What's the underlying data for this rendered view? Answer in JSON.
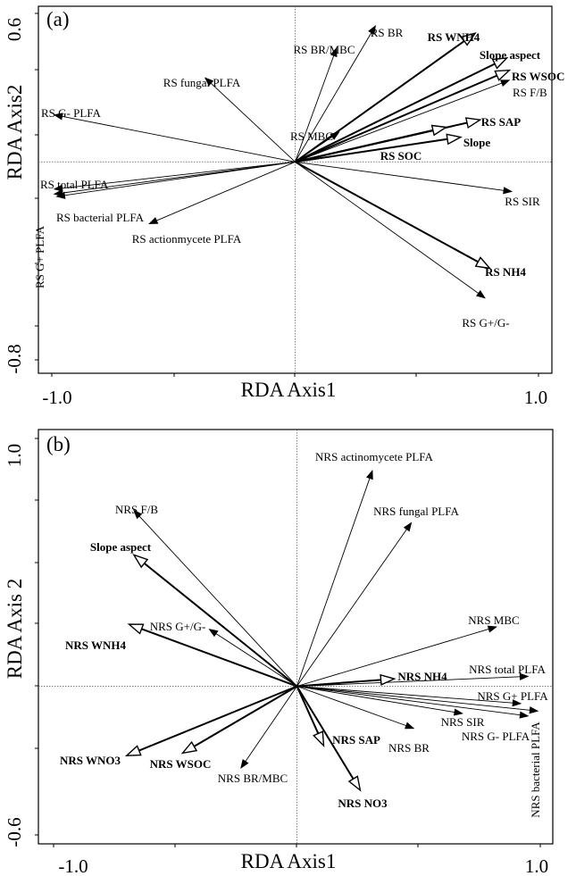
{
  "chart_data": [
    {
      "type": "scatter",
      "panel_label": "(a)",
      "xlabel": "RDA Axis1",
      "ylabel": "RDA Axis2",
      "xlim": [
        -1.0,
        1.0
      ],
      "ylim": [
        -0.8,
        0.6
      ],
      "x_tick_labels": [
        "-1.0",
        "1.0"
      ],
      "y_tick_labels": [
        "0.6",
        "-0.8"
      ],
      "vectors": [
        {
          "label": "RS BR",
          "x": 0.33,
          "y": 0.55,
          "style": "thin"
        },
        {
          "label": "RS BR/MBC",
          "x": 0.17,
          "y": 0.46,
          "style": "thin"
        },
        {
          "label": "RS fungal PLFA",
          "x": -0.37,
          "y": 0.34,
          "style": "thin"
        },
        {
          "label": "RS G- PLFA",
          "x": -0.99,
          "y": 0.19,
          "style": "thin"
        },
        {
          "label": "RS MBC",
          "x": 0.18,
          "y": 0.12,
          "style": "thin"
        },
        {
          "label": "RS total PLFA",
          "x": -0.99,
          "y": -0.11,
          "style": "thin"
        },
        {
          "label": "RS G+ PLFA",
          "x": -0.99,
          "y": -0.13,
          "style": "thin"
        },
        {
          "label": "RS bacterial PLFA",
          "x": -0.98,
          "y": -0.14,
          "style": "thin"
        },
        {
          "label": "RS actionmycete PLFA",
          "x": -0.6,
          "y": -0.25,
          "style": "thin"
        },
        {
          "label": "RS F/B",
          "x": 0.88,
          "y": 0.33,
          "style": "thin"
        },
        {
          "label": "RS SIR",
          "x": 0.89,
          "y": -0.12,
          "style": "thin"
        },
        {
          "label": "RS G+/G-",
          "x": 0.78,
          "y": -0.55,
          "style": "thin"
        },
        {
          "label": "RS WNH4",
          "x": 0.74,
          "y": 0.52,
          "style": "thick"
        },
        {
          "label": "Slope aspect",
          "x": 0.87,
          "y": 0.42,
          "style": "thick"
        },
        {
          "label": "RS WSOC",
          "x": 0.88,
          "y": 0.37,
          "style": "thick"
        },
        {
          "label": "RS SAP",
          "x": 0.76,
          "y": 0.17,
          "style": "thick"
        },
        {
          "label": "RS SOC",
          "x": 0.62,
          "y": 0.14,
          "style": "thick"
        },
        {
          "label": "Slope",
          "x": 0.68,
          "y": 0.1,
          "style": "thick"
        },
        {
          "label": "RS NH4",
          "x": 0.8,
          "y": -0.43,
          "style": "thick"
        }
      ]
    },
    {
      "type": "scatter",
      "panel_label": "(b)",
      "xlabel": "RDA Axis1",
      "ylabel": "RDA Axis 2",
      "xlim": [
        -1.0,
        1.0
      ],
      "ylim": [
        -0.6,
        1.0
      ],
      "x_tick_labels": [
        "-1.0",
        "1.0"
      ],
      "y_tick_labels": [
        "1.0",
        "-0.6"
      ],
      "vectors": [
        {
          "label": "NRS actinomycete PLFA",
          "x": 0.31,
          "y": 0.87,
          "style": "thin"
        },
        {
          "label": "NRS fungal PLFA",
          "x": 0.47,
          "y": 0.66,
          "style": "thin"
        },
        {
          "label": "NRS F/B",
          "x": -0.67,
          "y": 0.71,
          "style": "thin"
        },
        {
          "label": "NRS G+/G-",
          "x": -0.36,
          "y": 0.23,
          "style": "thin"
        },
        {
          "label": "NRS MBC",
          "x": 0.82,
          "y": 0.24,
          "style": "thin"
        },
        {
          "label": "NRS total PLFA",
          "x": 0.95,
          "y": 0.04,
          "style": "thin"
        },
        {
          "label": "NRS G+ PLFA",
          "x": 0.92,
          "y": -0.07,
          "style": "thin"
        },
        {
          "label": "NRS bacterial PLFA",
          "x": 0.99,
          "y": -0.1,
          "style": "thin"
        },
        {
          "label": "NRS G- PLFA",
          "x": 0.95,
          "y": -0.12,
          "style": "thin"
        },
        {
          "label": "NRS SIR",
          "x": 0.68,
          "y": -0.11,
          "style": "thin"
        },
        {
          "label": "NRS BR",
          "x": 0.48,
          "y": -0.17,
          "style": "thin"
        },
        {
          "label": "NRS BR/MBC",
          "x": -0.23,
          "y": -0.33,
          "style": "thin"
        },
        {
          "label": "Slope aspect",
          "x": -0.67,
          "y": 0.53,
          "style": "thick"
        },
        {
          "label": "NRS WNH4",
          "x": -0.69,
          "y": 0.25,
          "style": "thick"
        },
        {
          "label": "NRS WNO3",
          "x": -0.7,
          "y": -0.28,
          "style": "thick"
        },
        {
          "label": "NRS WSOC",
          "x": -0.47,
          "y": -0.27,
          "style": "thick"
        },
        {
          "label": "NRS NH4",
          "x": 0.4,
          "y": 0.03,
          "style": "thick"
        },
        {
          "label": "NRS SAP",
          "x": 0.11,
          "y": -0.24,
          "style": "thick"
        },
        {
          "label": "NRS NO3",
          "x": 0.26,
          "y": -0.42,
          "style": "thick"
        }
      ]
    }
  ]
}
